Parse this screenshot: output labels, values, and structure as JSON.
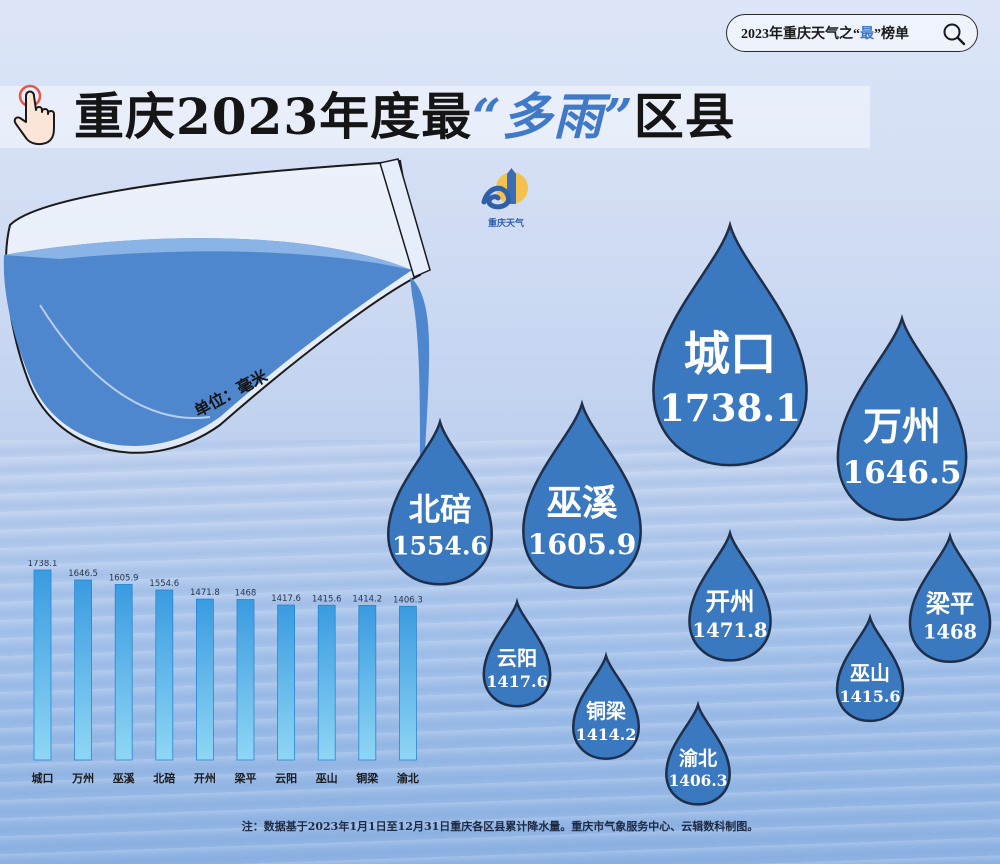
{
  "header": {
    "pill_text_pre": "2023年重庆天气之“",
    "pill_text_hl": "最",
    "pill_text_post": "”榜单"
  },
  "title": {
    "main": "重庆2023年度最",
    "accent": "“多雨”",
    "tail": "区县"
  },
  "logo": {
    "text": "重庆天气"
  },
  "unit_label": "单位：毫米",
  "footnote": "注：数据基于2023年1月1日至12月31日重庆各区县累计降水量。重庆市气象服务中心、云辑数科制图。",
  "chart_data": {
    "type": "bar",
    "title": "重庆2023年度最“多雨”区县",
    "categories": [
      "城口",
      "万州",
      "巫溪",
      "北碚",
      "开州",
      "梁平",
      "云阳",
      "巫山",
      "铜梁",
      "渝北"
    ],
    "value_labels": [
      "1738.1",
      "1646.5",
      "1605.9",
      "1554.6",
      "1471.8",
      "1468",
      "1417.6",
      "1415.6",
      "1414.2",
      "1406.3"
    ],
    "values": [
      1738.1,
      1646.5,
      1605.9,
      1554.6,
      1471.8,
      1468,
      1417.6,
      1415.6,
      1414.2,
      1406.3
    ],
    "ylabel": "单位：毫米",
    "ylim": [
      0,
      1738.1
    ],
    "colors": {
      "bar_top": "#3a9be0",
      "bar_bottom": "#8fd6f5",
      "drop": "#3a78c0",
      "drop_stroke": "#1f2f4a"
    }
  }
}
